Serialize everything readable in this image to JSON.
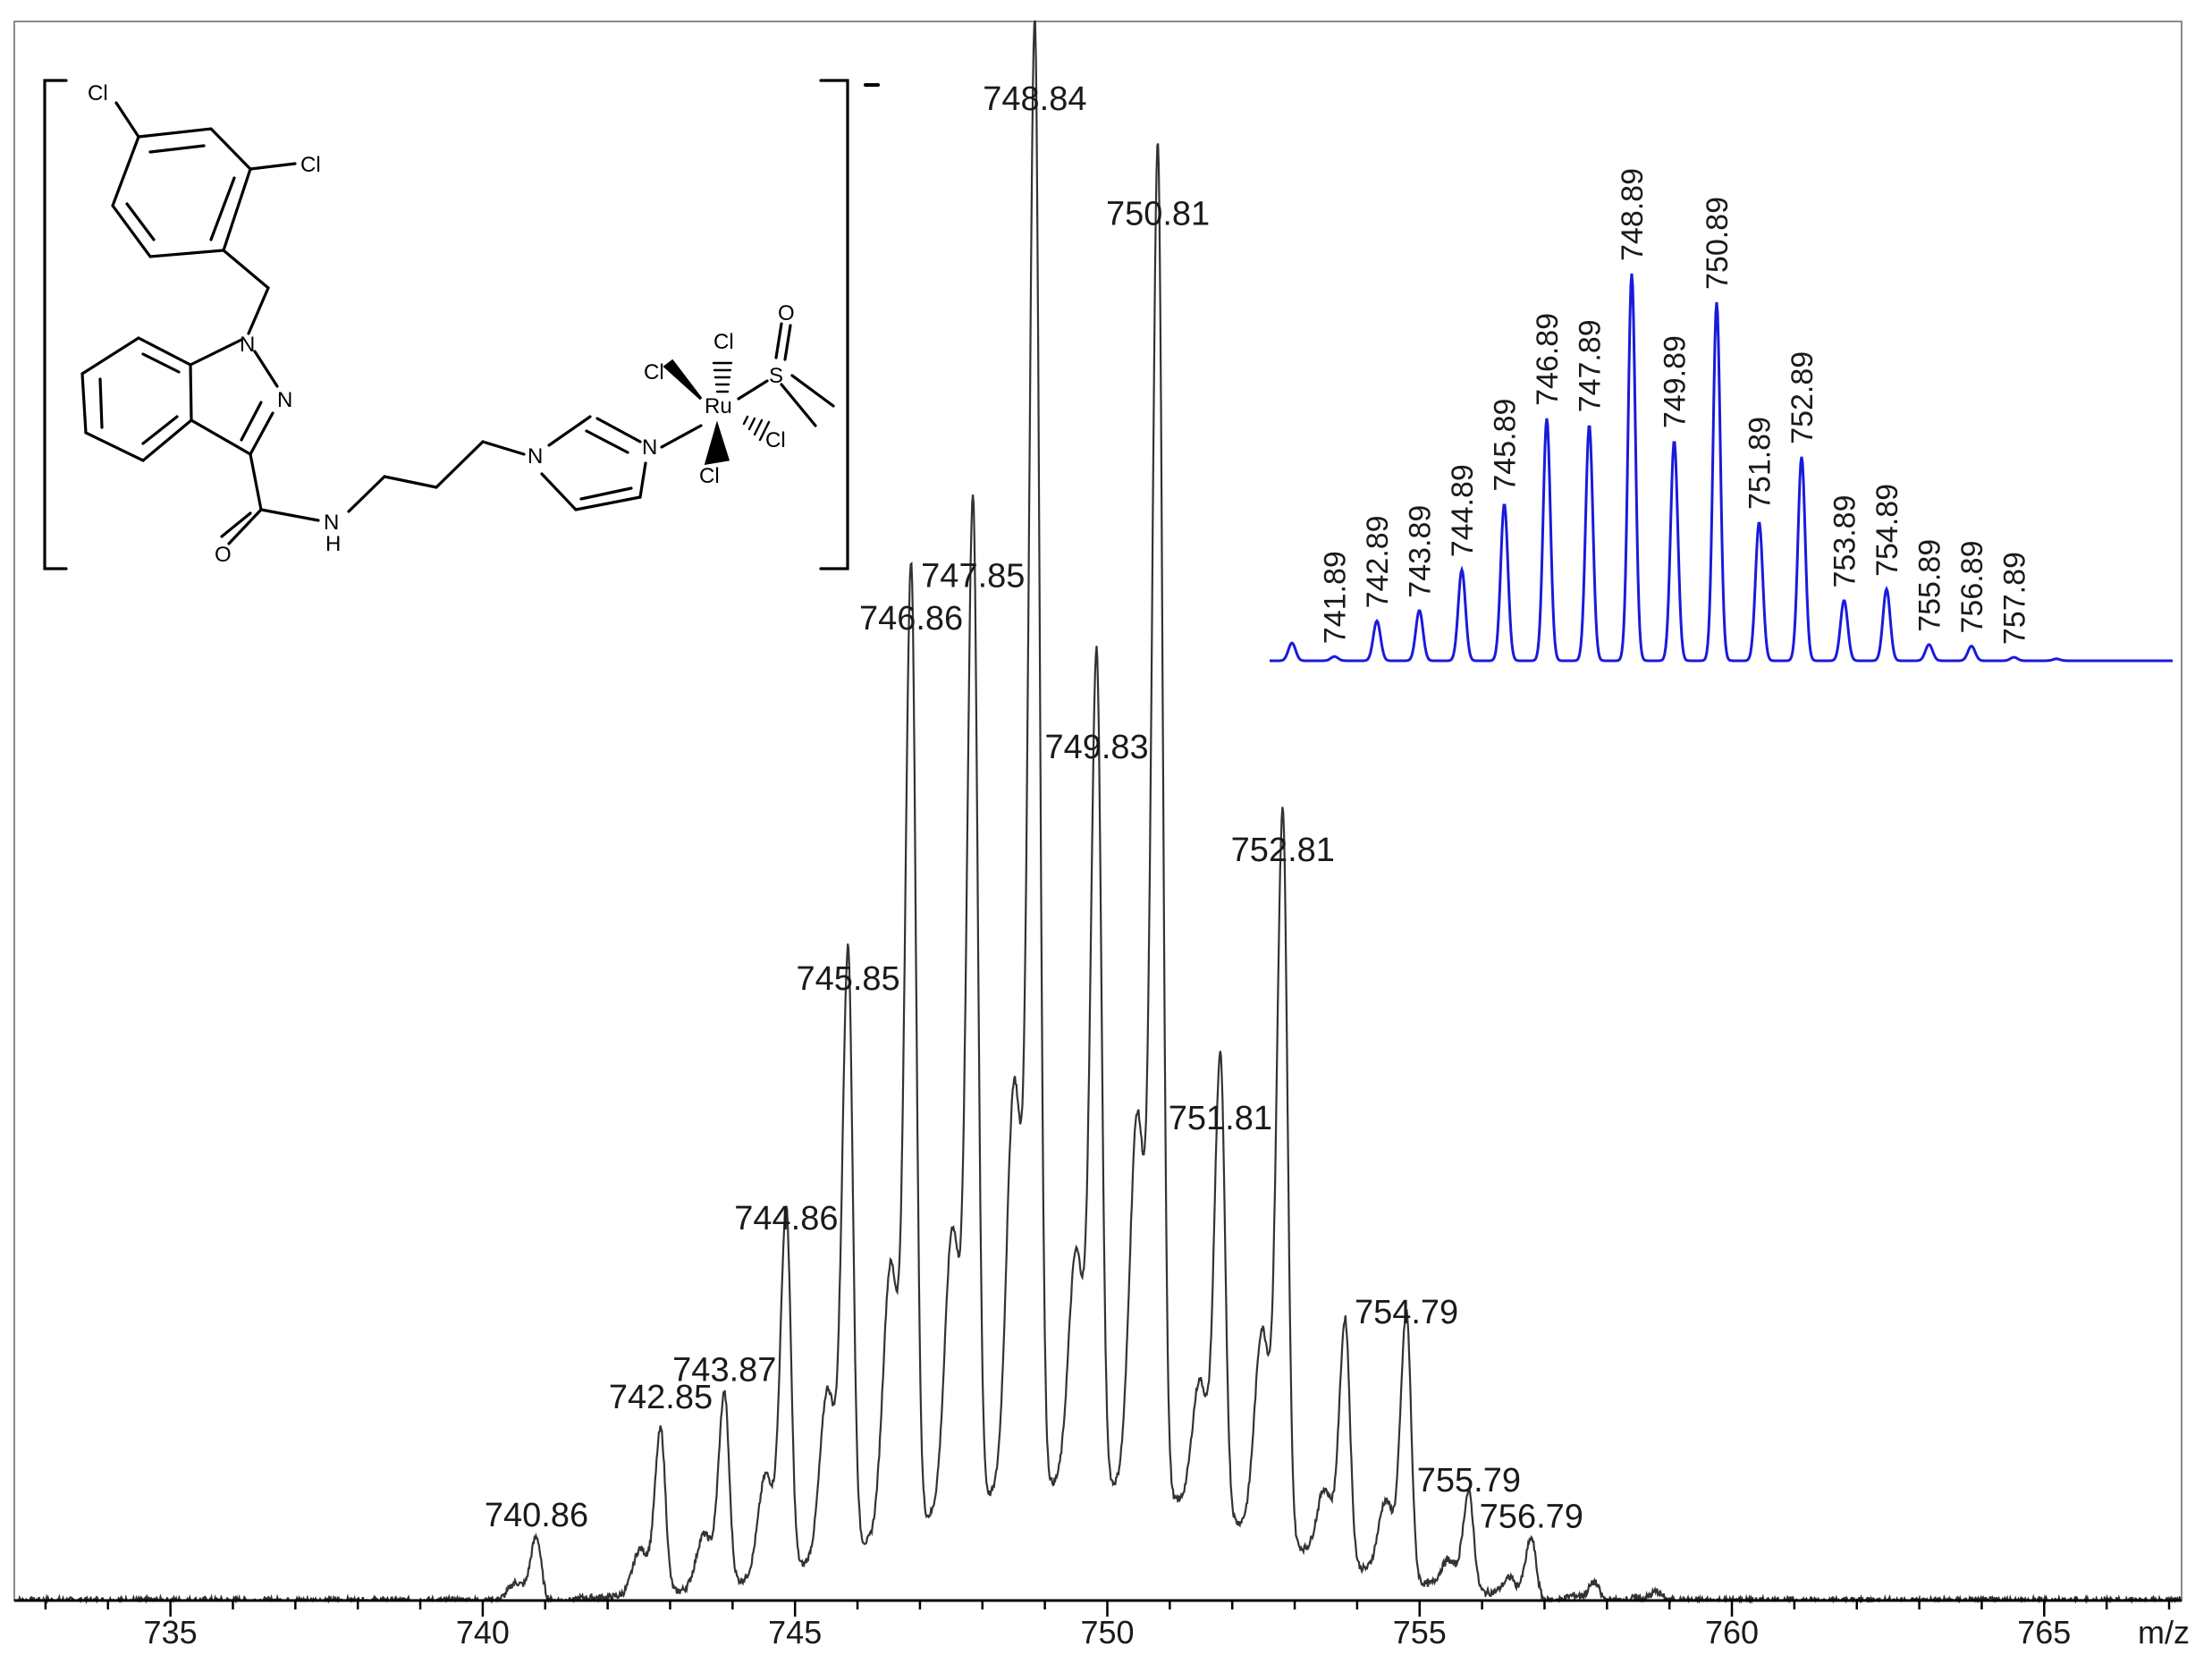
{
  "chart_data": {
    "type": "line",
    "title": "",
    "xlabel": "m/z",
    "ylabel": "",
    "xlim": [
      732.5,
      767.2
    ],
    "ylim": [
      0,
      100
    ],
    "grid": false,
    "x_ticks": [
      735,
      740,
      745,
      750,
      755,
      760,
      765
    ],
    "series": [
      {
        "kind": "measured",
        "color": "#333333",
        "peaks": [
          {
            "x": 740.86,
            "y": 4.2,
            "label": "740.86"
          },
          {
            "x": 742.85,
            "y": 10.8,
            "label": "742.85"
          },
          {
            "x": 743.87,
            "y": 12.6,
            "label": "743.87"
          },
          {
            "x": 744.86,
            "y": 23.8,
            "label": "744.86"
          },
          {
            "x": 745.85,
            "y": 39.6,
            "label": "745.85"
          },
          {
            "x": 746.86,
            "y": 63.4,
            "label": "746.86"
          },
          {
            "x": 747.85,
            "y": 66.2,
            "label": "747.85"
          },
          {
            "x": 748.84,
            "y": 96.4,
            "label": "748.84"
          },
          {
            "x": 749.83,
            "y": 54.9,
            "label": "749.83"
          },
          {
            "x": 750.81,
            "y": 88.8,
            "label": "750.81"
          },
          {
            "x": 751.81,
            "y": 30.4,
            "label": "751.81"
          },
          {
            "x": 752.81,
            "y": 48.1,
            "label": "752.81"
          },
          {
            "x": 753.81,
            "y": 16.1,
            "label": ""
          },
          {
            "x": 754.79,
            "y": 17.6,
            "label": "754.79"
          },
          {
            "x": 755.79,
            "y": 6.5,
            "label": "755.79"
          },
          {
            "x": 756.79,
            "y": 4.1,
            "label": "756.79"
          },
          {
            "x": 757.8,
            "y": 1.2,
            "label": ""
          },
          {
            "x": 758.8,
            "y": 0.6,
            "label": ""
          }
        ]
      },
      {
        "kind": "simulated",
        "color": "#1a1adc",
        "peaks": [
          {
            "x": 740.89,
            "y": 4.6,
            "label": ""
          },
          {
            "x": 741.89,
            "y": 1.1,
            "label": "741.89"
          },
          {
            "x": 742.89,
            "y": 10.3,
            "label": "742.89"
          },
          {
            "x": 743.89,
            "y": 13.0,
            "label": "743.89"
          },
          {
            "x": 744.89,
            "y": 23.5,
            "label": "744.89"
          },
          {
            "x": 745.89,
            "y": 40.5,
            "label": "745.89"
          },
          {
            "x": 746.89,
            "y": 62.6,
            "label": "746.89"
          },
          {
            "x": 747.89,
            "y": 60.9,
            "label": "747.89"
          },
          {
            "x": 748.89,
            "y": 100,
            "label": "748.89"
          },
          {
            "x": 749.89,
            "y": 56.8,
            "label": "749.89"
          },
          {
            "x": 750.89,
            "y": 92.6,
            "label": "750.89"
          },
          {
            "x": 751.89,
            "y": 35.8,
            "label": "751.89"
          },
          {
            "x": 752.89,
            "y": 52.7,
            "label": "752.89"
          },
          {
            "x": 753.89,
            "y": 15.6,
            "label": "753.89"
          },
          {
            "x": 754.89,
            "y": 18.5,
            "label": "754.89"
          },
          {
            "x": 755.89,
            "y": 4.2,
            "label": "755.89"
          },
          {
            "x": 756.89,
            "y": 3.8,
            "label": "756.89"
          },
          {
            "x": 757.89,
            "y": 0.9,
            "label": "757.89"
          }
        ]
      }
    ]
  },
  "structure": {
    "charge": "-",
    "atoms": {
      "cl_top": "Cl",
      "cl_right": "Cl",
      "n1": "N",
      "n2": "N",
      "o_amide": "O",
      "nh": "H",
      "nh_n": "N",
      "n_im1": "N",
      "n_im2": "N",
      "ru": "Ru",
      "cl_ru_top": "Cl",
      "cl_ru_left": "Cl",
      "cl_ru_right": "Cl",
      "cl_ru_bottom": "Cl",
      "s": "S",
      "o_sulfoxide": "O"
    }
  }
}
